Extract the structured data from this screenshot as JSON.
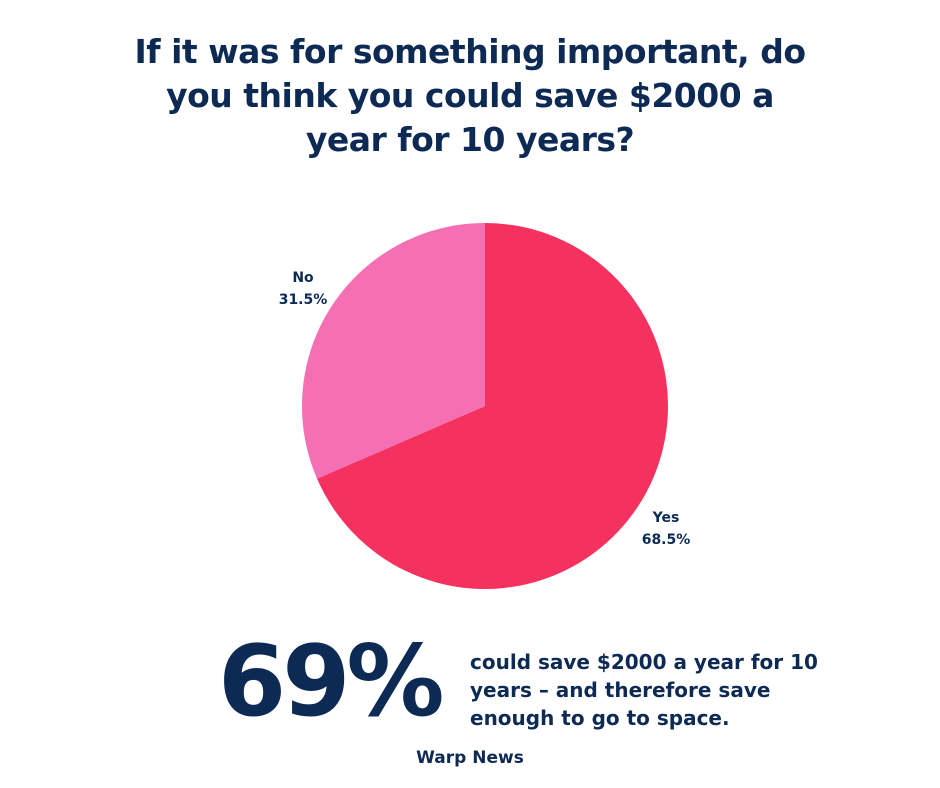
{
  "title_lines": [
    "If it was for something important, do",
    "you think you could save $2000 a",
    "year for 10 years?"
  ],
  "chart_data": {
    "type": "pie",
    "title": "If it was for something important, do you think you could save $2000 a year for 10 years?",
    "slices": [
      {
        "label": "Yes",
        "value": 68.5,
        "display": "68.5%",
        "color": "#f5325f"
      },
      {
        "label": "No",
        "value": 31.5,
        "display": "31.5%",
        "color": "#f56fb4"
      }
    ]
  },
  "highlight": {
    "stat": "69%",
    "description_lines": [
      "could save $2000 a year for 10",
      "years – and therefore save",
      "enough to go to space."
    ]
  },
  "source": "Warp News"
}
